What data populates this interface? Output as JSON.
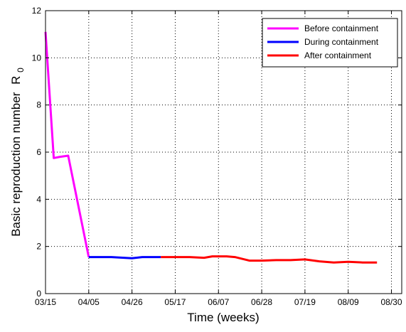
{
  "chart_data": {
    "type": "line",
    "xlabel": "Time (weeks)",
    "ylabel": "Basic reproduction number",
    "ylabel_symbol": "R",
    "ylabel_subscript": "0",
    "x_ticks": [
      "03/15",
      "04/05",
      "04/26",
      "05/17",
      "06/07",
      "06/28",
      "07/19",
      "08/09",
      "08/30"
    ],
    "x_tick_days": [
      0,
      21,
      42,
      63,
      84,
      105,
      126,
      147,
      168
    ],
    "xlim": [
      "03/15",
      "09/04"
    ],
    "ylim": [
      0,
      12
    ],
    "y_ticks": [
      0,
      2,
      4,
      6,
      8,
      10,
      12
    ],
    "grid": true,
    "legend_position": "top-right",
    "series": [
      {
        "name": "Before containment",
        "color": "#ff00ff",
        "x": [
          "03/15",
          "03/19",
          "03/22",
          "03/26",
          "04/05"
        ],
        "y": [
          11.1,
          5.75,
          5.8,
          5.85,
          1.55
        ]
      },
      {
        "name": "During containment",
        "color": "#0000ff",
        "x": [
          "04/05",
          "04/12",
          "04/16",
          "04/26",
          "05/01",
          "05/10"
        ],
        "y": [
          1.55,
          1.55,
          1.55,
          1.5,
          1.55,
          1.55
        ]
      },
      {
        "name": "After containment",
        "color": "#ff0000",
        "x": [
          "05/10",
          "05/17",
          "05/24",
          "05/31",
          "06/04",
          "06/11",
          "06/15",
          "06/22",
          "06/28",
          "07/05",
          "07/12",
          "07/19",
          "07/26",
          "08/02",
          "08/09",
          "08/16",
          "08/23"
        ],
        "y": [
          1.55,
          1.55,
          1.55,
          1.52,
          1.58,
          1.58,
          1.55,
          1.4,
          1.4,
          1.42,
          1.42,
          1.45,
          1.37,
          1.32,
          1.35,
          1.32,
          1.32
        ]
      }
    ]
  }
}
